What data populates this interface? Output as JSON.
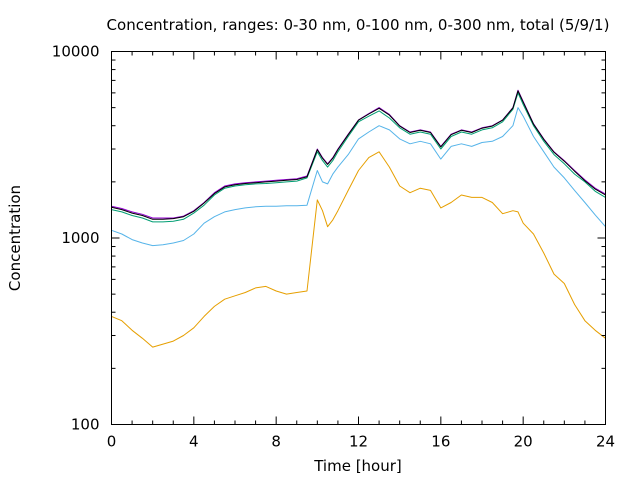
{
  "chart_data": {
    "type": "line",
    "title": "Concentration, ranges: 0-30 nm, 0-100 nm, 0-300 nm, total (5/9/1)",
    "xlabel": "Time [hour]",
    "ylabel": "Concentration",
    "xlim": [
      0,
      24
    ],
    "ylim": [
      100,
      10000
    ],
    "yscale": "log",
    "grid": false,
    "x_ticks": [
      0,
      4,
      8,
      12,
      16,
      20,
      24
    ],
    "x_tick_labels": [
      "0",
      "4",
      "8",
      "12",
      "16",
      "20",
      "24"
    ],
    "y_ticks": [
      100,
      1000,
      10000
    ],
    "y_tick_labels": [
      "100",
      "1000",
      "10000"
    ],
    "x": [
      0,
      0.5,
      1,
      1.5,
      2,
      2.5,
      3,
      3.5,
      4,
      4.5,
      5,
      5.5,
      6,
      6.5,
      7,
      7.5,
      8,
      8.5,
      9,
      9.5,
      10,
      10.25,
      10.5,
      10.75,
      11,
      11.5,
      12,
      12.5,
      13,
      13.5,
      14,
      14.5,
      15,
      15.5,
      16,
      16.5,
      17,
      17.5,
      18,
      18.5,
      19,
      19.5,
      19.75,
      20,
      20.5,
      21,
      21.5,
      22,
      22.5,
      23,
      23.5,
      24
    ],
    "series": [
      {
        "color": "#e69f00",
        "values": [
          380,
          360,
          320,
          290,
          260,
          270,
          280,
          300,
          330,
          380,
          430,
          470,
          490,
          510,
          540,
          550,
          520,
          500,
          510,
          520,
          1600,
          1400,
          1150,
          1250,
          1400,
          1800,
          2300,
          2700,
          2900,
          2400,
          1900,
          1750,
          1850,
          1800,
          1450,
          1550,
          1700,
          1650,
          1650,
          1550,
          1350,
          1400,
          1380,
          1200,
          1050,
          830,
          640,
          570,
          440,
          360,
          320,
          290
        ]
      },
      {
        "color": "#56b4e9",
        "values": [
          1100,
          1050,
          980,
          940,
          910,
          920,
          940,
          970,
          1050,
          1200,
          1300,
          1380,
          1420,
          1450,
          1470,
          1480,
          1480,
          1490,
          1490,
          1500,
          2300,
          2000,
          1950,
          2200,
          2400,
          2800,
          3400,
          3700,
          4000,
          3800,
          3400,
          3200,
          3300,
          3200,
          2650,
          3100,
          3200,
          3100,
          3250,
          3300,
          3500,
          4000,
          5000,
          4500,
          3500,
          2900,
          2400,
          2100,
          1800,
          1550,
          1330,
          1150
        ]
      },
      {
        "color": "#009e73",
        "values": [
          1420,
          1380,
          1320,
          1280,
          1220,
          1220,
          1230,
          1260,
          1360,
          1500,
          1700,
          1850,
          1900,
          1930,
          1950,
          1960,
          1980,
          2000,
          2020,
          2100,
          2900,
          2600,
          2400,
          2600,
          2900,
          3500,
          4200,
          4500,
          4800,
          4400,
          3900,
          3600,
          3700,
          3600,
          3000,
          3500,
          3700,
          3600,
          3800,
          3900,
          4200,
          4900,
          6000,
          5200,
          4000,
          3300,
          2800,
          2500,
          2200,
          2000,
          1780,
          1650
        ]
      },
      {
        "color": "#9400d3",
        "values": [
          1480,
          1440,
          1380,
          1340,
          1280,
          1280,
          1280,
          1310,
          1400,
          1550,
          1750,
          1900,
          1950,
          1980,
          2000,
          2020,
          2040,
          2060,
          2080,
          2150,
          3000,
          2700,
          2500,
          2700,
          3000,
          3600,
          4300,
          4650,
          5000,
          4600,
          4000,
          3700,
          3800,
          3700,
          3100,
          3600,
          3800,
          3700,
          3900,
          4000,
          4300,
          5000,
          6200,
          5400,
          4100,
          3400,
          2900,
          2600,
          2300,
          2050,
          1850,
          1720
        ]
      },
      {
        "color": "#000000",
        "values": [
          1460,
          1420,
          1360,
          1320,
          1260,
          1260,
          1270,
          1300,
          1390,
          1540,
          1730,
          1880,
          1930,
          1960,
          1980,
          2000,
          2020,
          2040,
          2060,
          2130,
          2980,
          2680,
          2480,
          2680,
          2980,
          3580,
          4280,
          4620,
          4960,
          4560,
          3980,
          3680,
          3780,
          3680,
          3080,
          3580,
          3780,
          3680,
          3880,
          3980,
          4280,
          4980,
          6150,
          5350,
          4080,
          3380,
          2880,
          2580,
          2280,
          2030,
          1830,
          1700
        ]
      }
    ]
  }
}
